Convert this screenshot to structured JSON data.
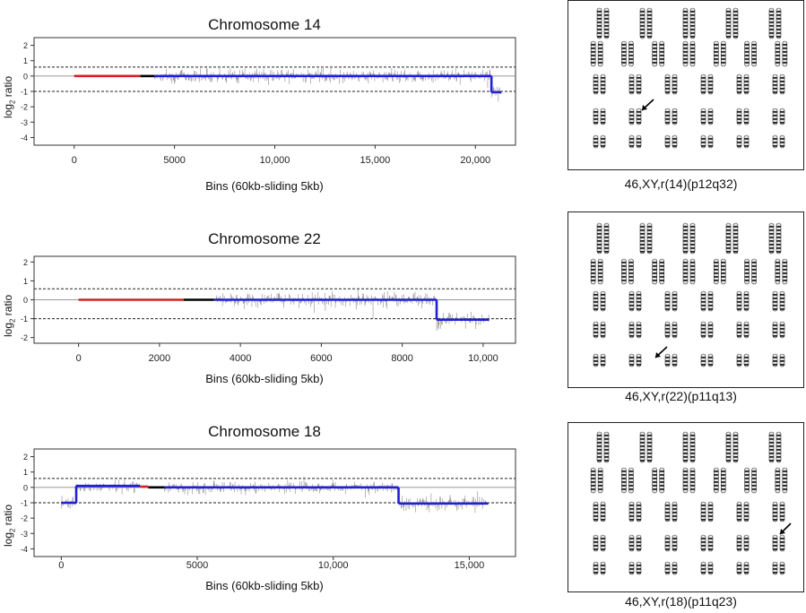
{
  "chart_data": [
    {
      "type": "line",
      "title": "Chromosome 14",
      "xlabel": "Bins (60kb-sliding 5kb)",
      "ylabel": "log2 ratio",
      "ylabel_base": "log",
      "ylabel_sub": "2",
      "ylabel_rest": " ratio",
      "xlim": [
        -2000,
        22000
      ],
      "ylim": [
        -4.5,
        2.5
      ],
      "xticks": [
        0,
        5000,
        10000,
        15000,
        20000
      ],
      "xtick_labels": [
        "0",
        "5000",
        "10,000",
        "15,000",
        "20,000"
      ],
      "yticks": [
        2,
        1,
        0,
        -1,
        -2,
        -3,
        -4
      ],
      "reference_lines": [
        0.58,
        -1
      ],
      "series": [
        {
          "color": "#d62020",
          "segments": [
            [
              0,
              0,
              3300,
              0
            ]
          ]
        },
        {
          "color": "#000000",
          "segments": [
            [
              3300,
              0,
              4000,
              0
            ]
          ]
        },
        {
          "color": "#1f1fd6",
          "segments": [
            [
              4000,
              0,
              20800,
              0
            ],
            [
              20800,
              0,
              20800,
              -1.05
            ],
            [
              20800,
              -1.05,
              21300,
              -1.05
            ]
          ]
        }
      ],
      "scatter_ranges": [
        [
          4000,
          20800,
          0,
          0.22
        ],
        [
          20800,
          21300,
          -1.05,
          0.3
        ]
      ]
    },
    {
      "type": "line",
      "title": "Chromosome 22",
      "xlabel": "Bins (60kb-sliding 5kb)",
      "ylabel": "log2 ratio",
      "ylabel_base": "log",
      "ylabel_sub": "2",
      "ylabel_rest": " ratio",
      "xlim": [
        -1100,
        10800
      ],
      "ylim": [
        -2.3,
        2.3
      ],
      "xticks": [
        0,
        2000,
        4000,
        6000,
        8000,
        10000
      ],
      "xtick_labels": [
        "0",
        "2000",
        "4000",
        "6000",
        "8000",
        "10,000"
      ],
      "yticks": [
        2,
        1,
        0,
        -1,
        -2
      ],
      "reference_lines": [
        0.58,
        -1
      ],
      "series": [
        {
          "color": "#d62020",
          "segments": [
            [
              0,
              0,
              2600,
              0
            ]
          ]
        },
        {
          "color": "#000000",
          "segments": [
            [
              2600,
              0,
              3350,
              0
            ]
          ]
        },
        {
          "color": "#1f1fd6",
          "segments": [
            [
              3350,
              0,
              8850,
              0
            ],
            [
              8850,
              0,
              8850,
              -1.05
            ],
            [
              8850,
              -1.05,
              10150,
              -1.05
            ]
          ]
        }
      ],
      "scatter_ranges": [
        [
          3400,
          8850,
          0,
          0.2
        ],
        [
          8850,
          10150,
          -1.05,
          0.22
        ]
      ]
    },
    {
      "type": "line",
      "title": "Chromosome 18",
      "xlabel": "Bins (60kb-sliding 5kb)",
      "ylabel": "log2 ratio",
      "ylabel_base": "log",
      "ylabel_sub": "2",
      "ylabel_rest": " ratio",
      "xlim": [
        -1000,
        16700
      ],
      "ylim": [
        -4.5,
        2.5
      ],
      "xticks": [
        0,
        5000,
        10000,
        15000
      ],
      "xtick_labels": [
        "0",
        "5000",
        "10,000",
        "15,000"
      ],
      "yticks": [
        2,
        1,
        0,
        -1,
        -2,
        -3,
        -4
      ],
      "reference_lines": [
        0.58,
        -1
      ],
      "series": [
        {
          "color": "#1f1fd6",
          "segments": [
            [
              0,
              -1.0,
              550,
              -1.0
            ],
            [
              550,
              -1.0,
              550,
              0.1
            ],
            [
              550,
              0.1,
              2900,
              0.1
            ]
          ]
        },
        {
          "color": "#d62020",
          "segments": [
            [
              2900,
              0.05,
              3200,
              0.05
            ]
          ]
        },
        {
          "color": "#000000",
          "segments": [
            [
              3200,
              0,
              3800,
              0
            ]
          ]
        },
        {
          "color": "#1f1fd6",
          "segments": [
            [
              3800,
              0,
              12400,
              0
            ],
            [
              12400,
              0,
              12400,
              -1.05
            ],
            [
              12400,
              -1.05,
              15700,
              -1.05
            ]
          ]
        }
      ],
      "scatter_ranges": [
        [
          0,
          550,
          -1.0,
          0.22
        ],
        [
          550,
          2900,
          0.05,
          0.2
        ],
        [
          3800,
          12400,
          0,
          0.2
        ],
        [
          12400,
          15700,
          -1.05,
          0.25
        ]
      ]
    }
  ],
  "karyotypes": [
    {
      "caption": "46,XY,r(14)(p12q32)"
    },
    {
      "caption": "46,XY,r(22)(p11q13)"
    },
    {
      "caption": "46,XY,r(18)(p11q23)"
    }
  ]
}
